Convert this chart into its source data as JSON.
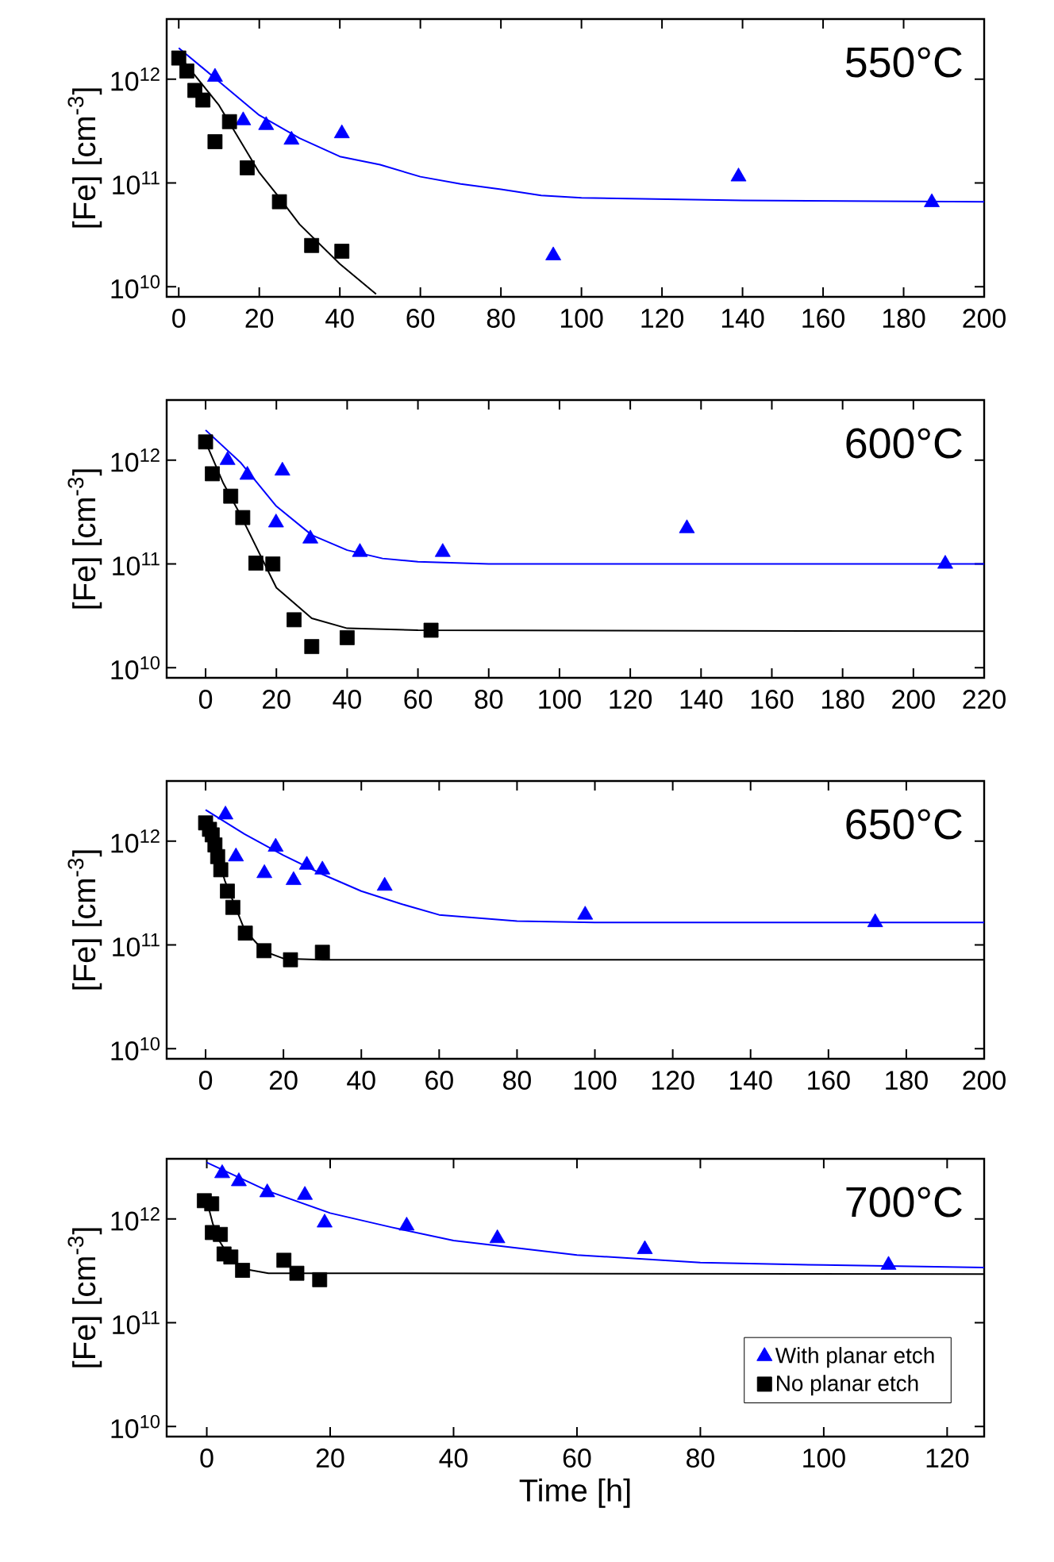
{
  "chart_data": [
    {
      "type": "scatter",
      "title": "550°C",
      "ylabel": "[Fe] [cm$^{-3}$]",
      "log": "y",
      "xlim": [
        -3,
        200
      ],
      "ylim": [
        8000000000.0,
        3800000000000.0
      ],
      "xticks": [
        0,
        20,
        40,
        60,
        80,
        100,
        120,
        140,
        160,
        180,
        200
      ],
      "yticks": [
        {
          "value": 10000000000.0,
          "label": "10$^{10}$"
        },
        {
          "value": 100000000000.0,
          "label": "10$^{11}$"
        },
        {
          "value": 1000000000000.0,
          "label": "10$^{12}$"
        }
      ],
      "series": [
        {
          "marker": "triangle",
          "color": "#0000ff",
          "x": [
            9,
            16,
            21.7,
            28,
            40.5,
            93,
            139,
            187
          ],
          "values": [
            1050000000000.0,
            400000000000.0,
            360000000000.0,
            260000000000.0,
            300000000000.0,
            20000000000.0,
            115000000000.0,
            65000000000.0
          ]
        },
        {
          "marker": "square",
          "color": "#000000",
          "x": [
            0,
            2,
            4,
            6,
            9,
            12.6,
            17,
            25,
            33,
            40.5
          ],
          "values": [
            1600000000000.0,
            1200000000000.0,
            780000000000.0,
            630000000000.0,
            250000000000.0,
            390000000000.0,
            140000000000.0,
            66000000000.0,
            25000000000.0,
            22000000000.0
          ]
        },
        {
          "type": "line",
          "color": "#0000ff",
          "x": [
            0,
            10,
            20,
            30,
            40,
            50,
            60,
            70,
            80,
            90,
            100,
            140,
            200
          ],
          "values": [
            2000000000000.0,
            950000000000.0,
            450000000000.0,
            270000000000.0,
            180000000000.0,
            150000000000.0,
            115000000000.0,
            98000000000.0,
            87000000000.0,
            76000000000.0,
            72000000000.0,
            68000000000.0,
            66000000000.0
          ]
        },
        {
          "type": "line",
          "color": "#000000",
          "x": [
            0,
            10,
            20,
            25,
            30,
            40,
            49
          ],
          "values": [
            1700000000000.0,
            560000000000.0,
            126000000000.0,
            72000000000.0,
            40000000000.0,
            16600000000.0,
            8500000000.0
          ]
        }
      ]
    },
    {
      "type": "scatter",
      "title": "600°C",
      "ylabel": "[Fe] [cm$^{-3}$]",
      "log": "y",
      "xlim": [
        -11,
        220
      ],
      "ylim": [
        8000000000.0,
        3800000000000.0
      ],
      "xticks": [
        0,
        20,
        40,
        60,
        80,
        100,
        120,
        140,
        160,
        180,
        200,
        220
      ],
      "yticks": [
        {
          "value": 10000000000.0,
          "label": "10$^{10}$"
        },
        {
          "value": 100000000000.0,
          "label": "10$^{11}$"
        },
        {
          "value": 1000000000000.0,
          "label": "10$^{12}$"
        }
      ],
      "series": [
        {
          "marker": "triangle",
          "color": "#0000ff",
          "x": [
            6.2,
            11.8,
            21.7,
            19.9,
            29.6,
            43.6,
            67,
            136,
            209
          ],
          "values": [
            1000000000000.0,
            720000000000.0,
            790000000000.0,
            250000000000.0,
            175000000000.0,
            130000000000.0,
            130000000000.0,
            220000000000.0,
            100000000000.0
          ]
        },
        {
          "marker": "square",
          "color": "#000000",
          "x": [
            0,
            1.9,
            7.1,
            10.5,
            14.2,
            19,
            25,
            30,
            40,
            63.7
          ],
          "values": [
            1500000000000.0,
            740000000000.0,
            450000000000.0,
            280000000000.0,
            102000000000.0,
            100000000000.0,
            29000000000.0,
            16000000000.0,
            19500000000.0,
            23000000000.0
          ]
        },
        {
          "type": "line",
          "color": "#0000ff",
          "x": [
            0,
            10,
            20,
            30,
            40,
            50,
            60,
            80,
            220
          ],
          "values": [
            1950000000000.0,
            940000000000.0,
            360000000000.0,
            190000000000.0,
            136000000000.0,
            113000000000.0,
            105000000000.0,
            100000000000.0,
            100000000000.0
          ]
        },
        {
          "type": "line",
          "color": "#000000",
          "x": [
            0,
            5,
            10,
            20,
            30,
            40,
            60,
            220
          ],
          "values": [
            1500000000000.0,
            600000000000.0,
            290000000000.0,
            59000000000.0,
            30000000000.0,
            24000000000.0,
            23000000000.0,
            22500000000.0
          ]
        }
      ]
    },
    {
      "type": "scatter",
      "title": "650°C",
      "ylabel": "[Fe] [cm$^{-3}$]",
      "log": "y",
      "xlim": [
        -10,
        200
      ],
      "ylim": [
        8000000000.0,
        3800000000000.0
      ],
      "xticks": [
        0,
        20,
        40,
        60,
        80,
        100,
        120,
        140,
        160,
        180,
        200
      ],
      "yticks": [
        {
          "value": 10000000000.0,
          "label": "10$^{10}$"
        },
        {
          "value": 100000000000.0,
          "label": "10$^{11}$"
        },
        {
          "value": 1000000000000.0,
          "label": "10$^{12}$"
        }
      ],
      "series": [
        {
          "marker": "triangle",
          "color": "#0000ff",
          "x": [
            5.1,
            7.8,
            18,
            15.1,
            22.6,
            26,
            30,
            46,
            97.5,
            172
          ],
          "values": [
            1800000000000.0,
            710000000000.0,
            880000000000.0,
            490000000000.0,
            420000000000.0,
            590000000000.0,
            530000000000.0,
            370000000000.0,
            195000000000.0,
            165000000000.0
          ]
        },
        {
          "marker": "square",
          "color": "#000000",
          "x": [
            0,
            1,
            1.7,
            2.4,
            3.1,
            3.9,
            5.6,
            7,
            10.2,
            15,
            21.8,
            30
          ],
          "values": [
            1500000000000.0,
            1300000000000.0,
            1150000000000.0,
            920000000000.0,
            710000000000.0,
            530000000000.0,
            330000000000.0,
            230000000000.0,
            130000000000.0,
            88000000000.0,
            72000000000.0,
            85000000000.0
          ]
        },
        {
          "type": "line",
          "color": "#0000ff",
          "x": [
            0,
            10,
            20,
            30,
            40,
            50,
            60,
            80,
            100,
            200
          ],
          "values": [
            2000000000000.0,
            1170000000000.0,
            730000000000.0,
            480000000000.0,
            330000000000.0,
            250000000000.0,
            195000000000.0,
            170000000000.0,
            165000000000.0,
            165000000000.0
          ]
        },
        {
          "type": "line",
          "color": "#000000",
          "x": [
            0,
            2,
            5,
            10,
            15,
            20,
            30,
            200
          ],
          "values": [
            1600000000000.0,
            980000000000.0,
            410000000000.0,
            140000000000.0,
            87000000000.0,
            74000000000.0,
            72000000000.0,
            72000000000.0
          ]
        }
      ]
    },
    {
      "type": "scatter",
      "title": "700°C",
      "xlabel": "Time [h]",
      "ylabel": "[Fe] [cm$^{-3}$]",
      "log": "y",
      "xlim": [
        -6.5,
        126
      ],
      "ylim": [
        8000000000.0,
        3800000000000.0
      ],
      "legend": "bottom right",
      "xticks": [
        0,
        20,
        40,
        60,
        80,
        100,
        120
      ],
      "yticks": [
        {
          "value": 10000000000.0,
          "label": "10$^{10}$"
        },
        {
          "value": 100000000000.0,
          "label": "10$^{11}$"
        },
        {
          "value": 1000000000000.0,
          "label": "10$^{12}$"
        }
      ],
      "series": [
        {
          "name": "With planar etch",
          "marker": "triangle",
          "color": "#0000ff",
          "x": [
            2.5,
            5.2,
            9.8,
            15.9,
            19.1,
            32.4,
            47.1,
            71,
            110.5
          ],
          "values": [
            2750000000000.0,
            2300000000000.0,
            1800000000000.0,
            1700000000000.0,
            920000000000.0,
            860000000000.0,
            650000000000.0,
            510000000000.0,
            360000000000.0
          ]
        },
        {
          "name": "No planar etch",
          "marker": "square",
          "color": "#000000",
          "x": [
            -0.4,
            0.8,
            0.9,
            2.2,
            2.8,
            3.9,
            5.8,
            12.5,
            14.6,
            18.3
          ],
          "values": [
            1500000000000.0,
            1400000000000.0,
            740000000000.0,
            710000000000.0,
            460000000000.0,
            430000000000.0,
            320000000000.0,
            400000000000.0,
            300000000000.0,
            260000000000.0
          ]
        },
        {
          "type": "line",
          "color": "#0000ff",
          "x": [
            0,
            10,
            20,
            30,
            40,
            60,
            80,
            100,
            126
          ],
          "values": [
            3500000000000.0,
            1850000000000.0,
            1140000000000.0,
            830000000000.0,
            620000000000.0,
            450000000000.0,
            380000000000.0,
            360000000000.0,
            340000000000.0
          ]
        },
        {
          "type": "line",
          "color": "#000000",
          "x": [
            0,
            1,
            2,
            4,
            6,
            10,
            126
          ],
          "values": [
            1500000000000.0,
            890000000000.0,
            620000000000.0,
            400000000000.0,
            330000000000.0,
            300000000000.0,
            295000000000.0
          ]
        }
      ]
    }
  ]
}
